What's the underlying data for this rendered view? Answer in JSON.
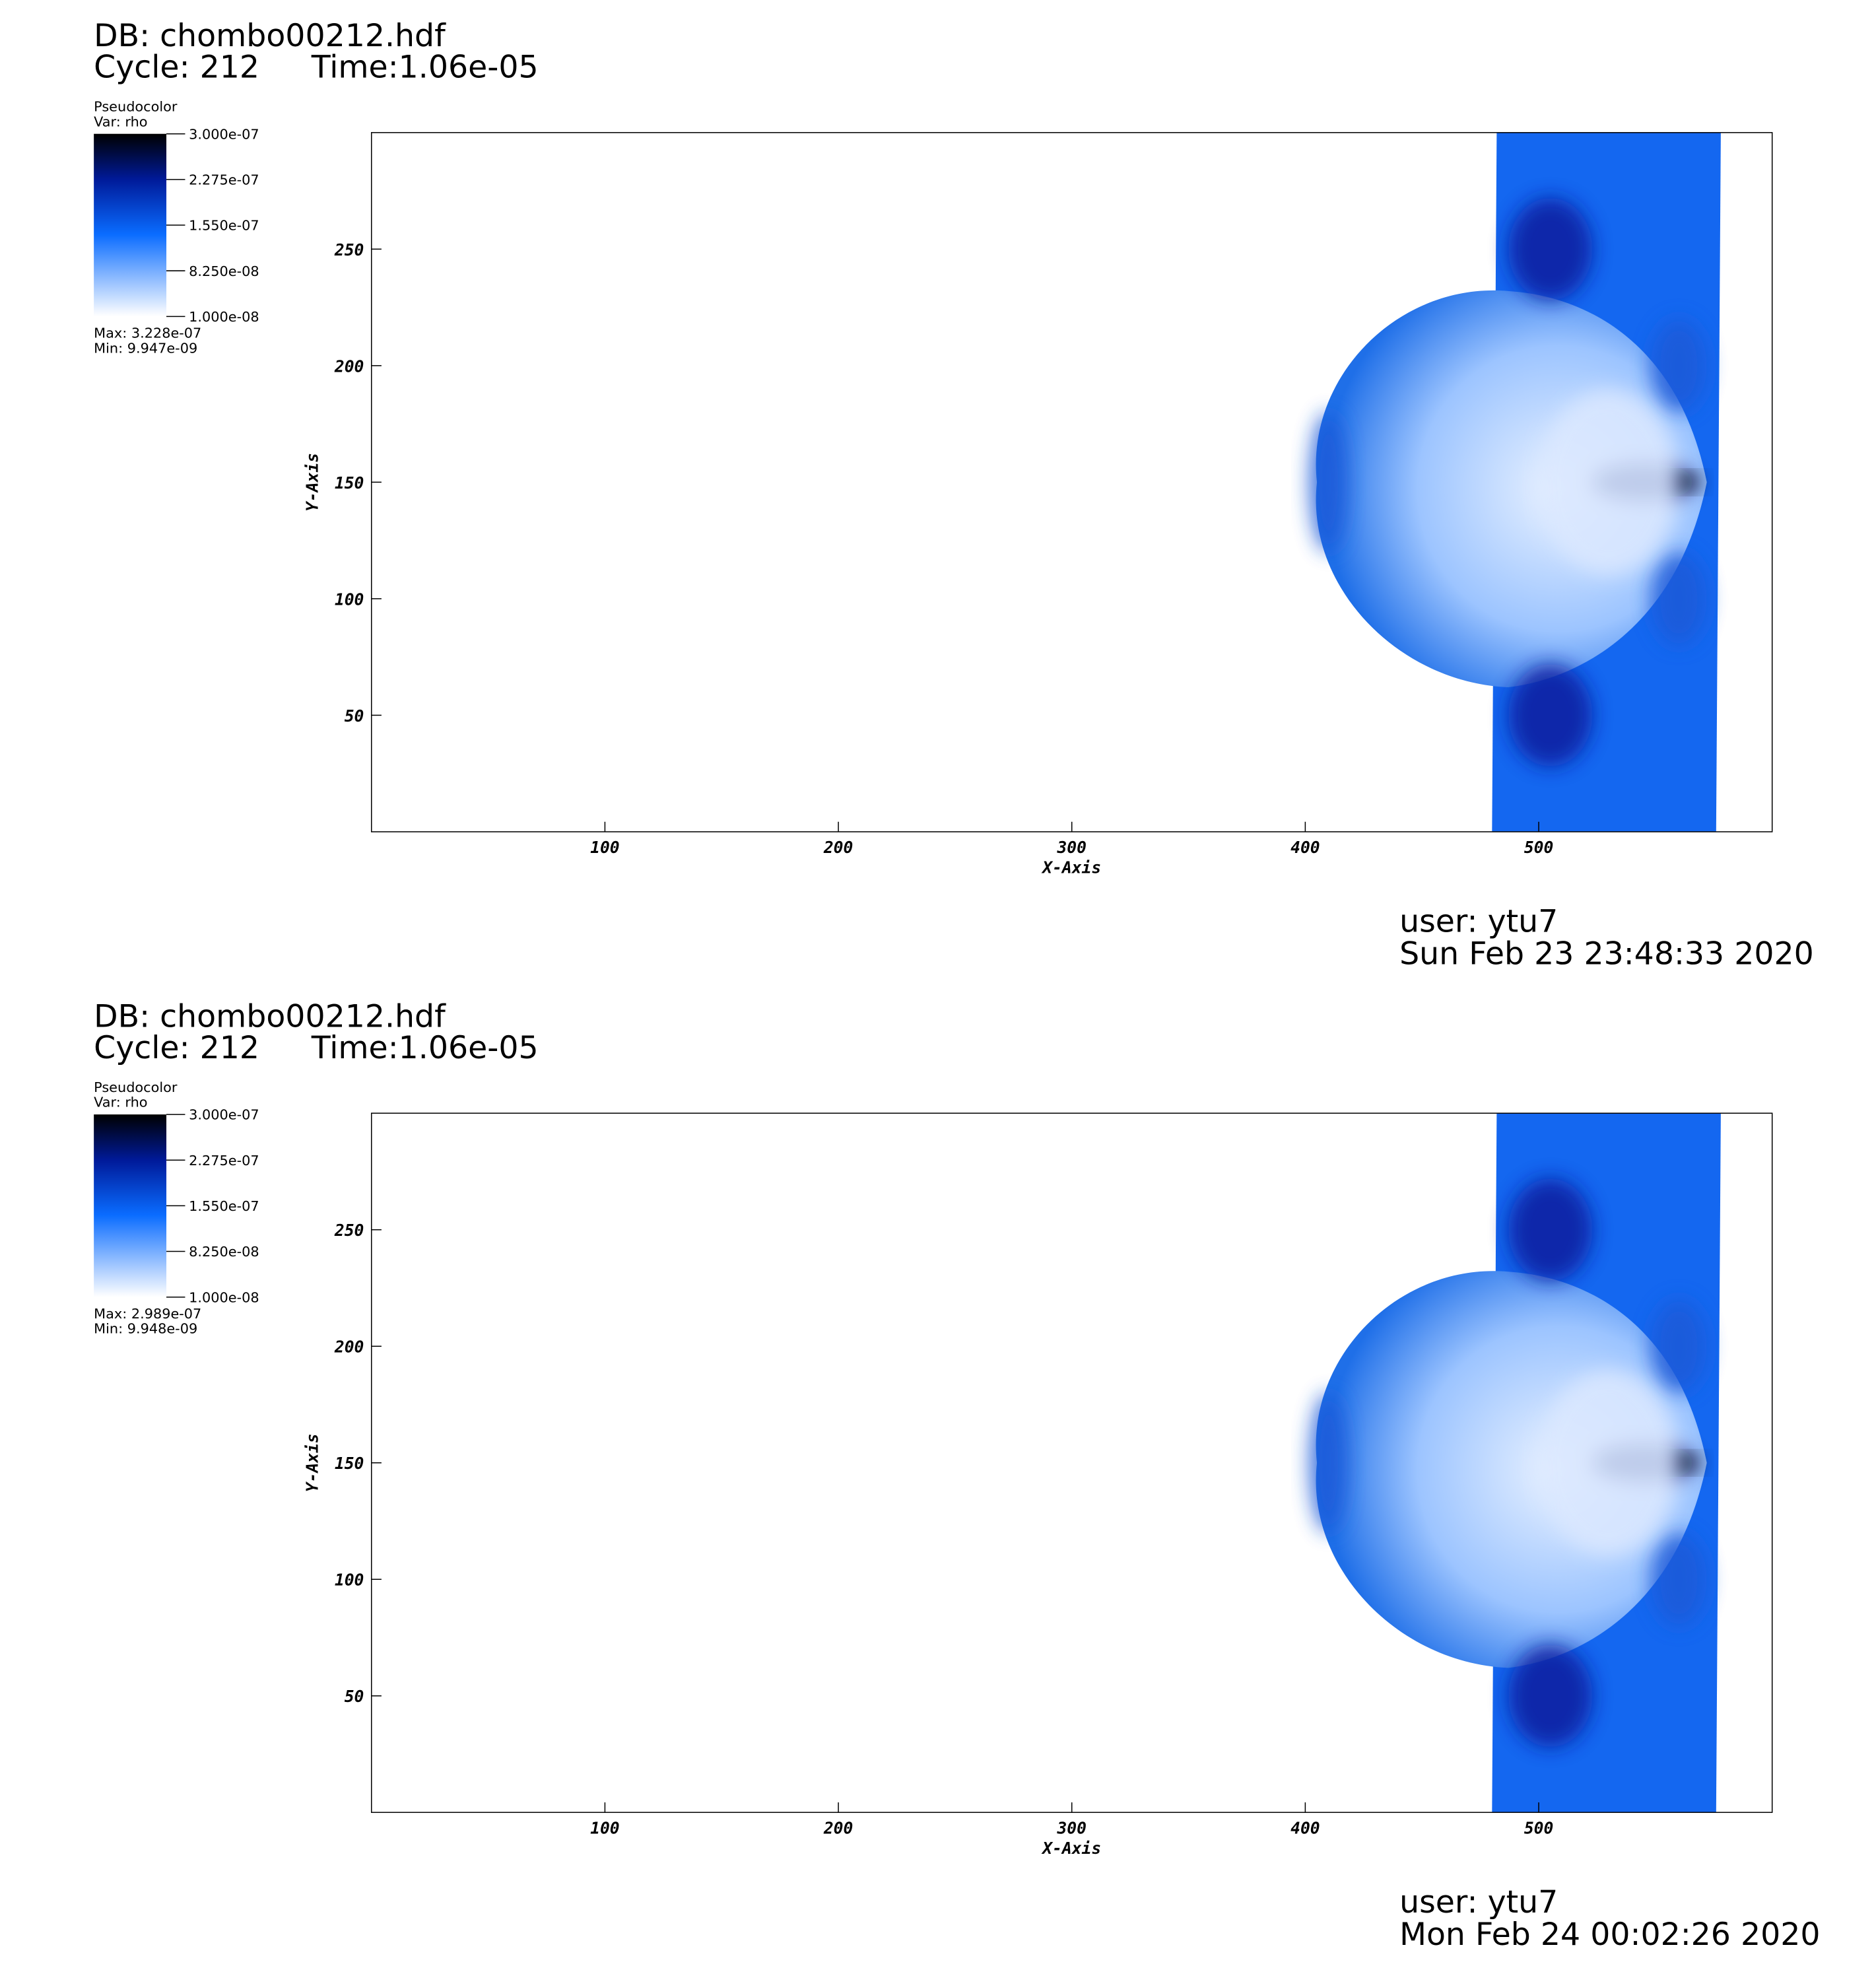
{
  "chart_data": [
    {
      "type": "pseudocolor",
      "db": "DB: chombo00212.hdf",
      "cycle": "Cycle: 212",
      "time": "Time:1.06e-05",
      "legend_title": "Pseudocolor",
      "variable": "Var: rho",
      "clim": [
        1e-08,
        3e-07
      ],
      "colorbar_ticks": [
        {
          "value": 3e-07,
          "label": "3.000e-07"
        },
        {
          "value": 2.275e-07,
          "label": "2.275e-07"
        },
        {
          "value": 1.55e-07,
          "label": "1.550e-07"
        },
        {
          "value": 8.25e-08,
          "label": "8.250e-08"
        },
        {
          "value": 1e-08,
          "label": "1.000e-08"
        }
      ],
      "colormap": [
        "#ffffff",
        "#0a6cff",
        "#001a99",
        "#000000"
      ],
      "max": "Max:  3.228e-07",
      "min": "Min:  9.947e-09",
      "xlabel": "X-Axis",
      "ylabel": "Y-Axis",
      "xlim": [
        0,
        600
      ],
      "ylim": [
        0,
        300
      ],
      "xticks": [
        100,
        200,
        300,
        400,
        500
      ],
      "yticks": [
        50,
        100,
        150,
        200,
        250
      ],
      "user": "user: ytu7",
      "date": "Sun Feb 23 23:48:33 2020"
    },
    {
      "type": "pseudocolor",
      "db": "DB: chombo00212.hdf",
      "cycle": "Cycle: 212",
      "time": "Time:1.06e-05",
      "legend_title": "Pseudocolor",
      "variable": "Var: rho",
      "clim": [
        1e-08,
        3e-07
      ],
      "colorbar_ticks": [
        {
          "value": 3e-07,
          "label": "3.000e-07"
        },
        {
          "value": 2.275e-07,
          "label": "2.275e-07"
        },
        {
          "value": 1.55e-07,
          "label": "1.550e-07"
        },
        {
          "value": 8.25e-08,
          "label": "8.250e-08"
        },
        {
          "value": 1e-08,
          "label": "1.000e-08"
        }
      ],
      "colormap": [
        "#ffffff",
        "#0a6cff",
        "#001a99",
        "#000000"
      ],
      "max": "Max:  2.989e-07",
      "min": "Min:  9.948e-09",
      "xlabel": "X-Axis",
      "ylabel": "Y-Axis",
      "xlim": [
        0,
        600
      ],
      "ylim": [
        0,
        300
      ],
      "xticks": [
        100,
        200,
        300,
        400,
        500
      ],
      "yticks": [
        50,
        100,
        150,
        200,
        250
      ],
      "user": "user: ytu7",
      "date": "Mon Feb 24 00:02:26 2020"
    }
  ]
}
